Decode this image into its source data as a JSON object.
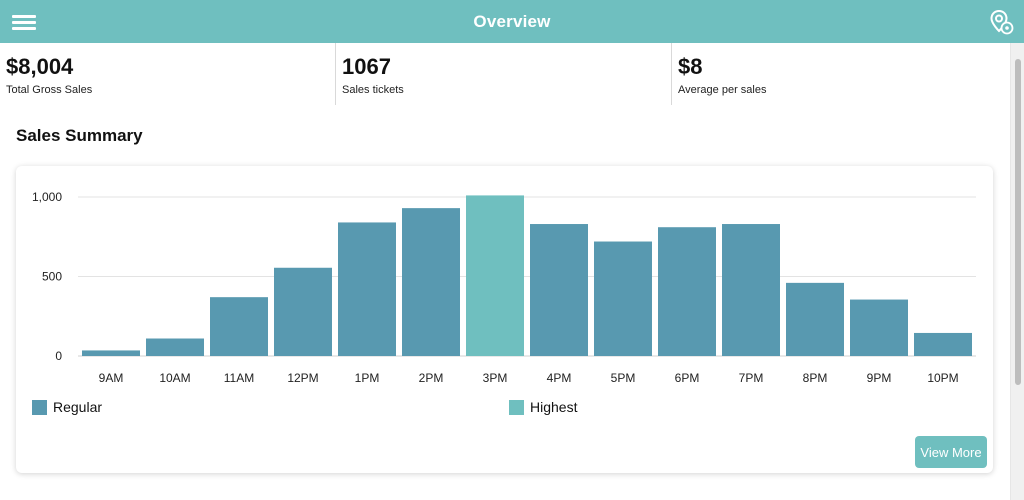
{
  "header": {
    "title": "Overview",
    "menu_icon": "hamburger-menu-icon",
    "location_icon": "location-settings-icon"
  },
  "stats": [
    {
      "value": "$8,004",
      "label": "Total Gross Sales"
    },
    {
      "value": "1067",
      "label": "Sales tickets"
    },
    {
      "value": "$8",
      "label": "Average per sales"
    }
  ],
  "section_title": "Sales Summary",
  "colors": {
    "header": "#6fbfbf",
    "regular": "#5899b0",
    "highest": "#6fbfbf",
    "button": "#6fbfbf"
  },
  "chart_data": {
    "type": "bar",
    "categories": [
      "9AM",
      "10AM",
      "11AM",
      "12PM",
      "1PM",
      "2PM",
      "3PM",
      "4PM",
      "5PM",
      "6PM",
      "7PM",
      "8PM",
      "9PM",
      "10PM"
    ],
    "values": [
      35,
      110,
      370,
      555,
      840,
      930,
      1010,
      830,
      720,
      810,
      830,
      460,
      355,
      145
    ],
    "highlight_index": 6,
    "ylim": [
      0,
      1000
    ],
    "yticks": [
      "0",
      "500",
      "1,000"
    ],
    "grid": true,
    "legend": {
      "position": "bottom",
      "items": [
        "Regular",
        "Highest"
      ]
    }
  },
  "button": {
    "view_more": "View More"
  }
}
